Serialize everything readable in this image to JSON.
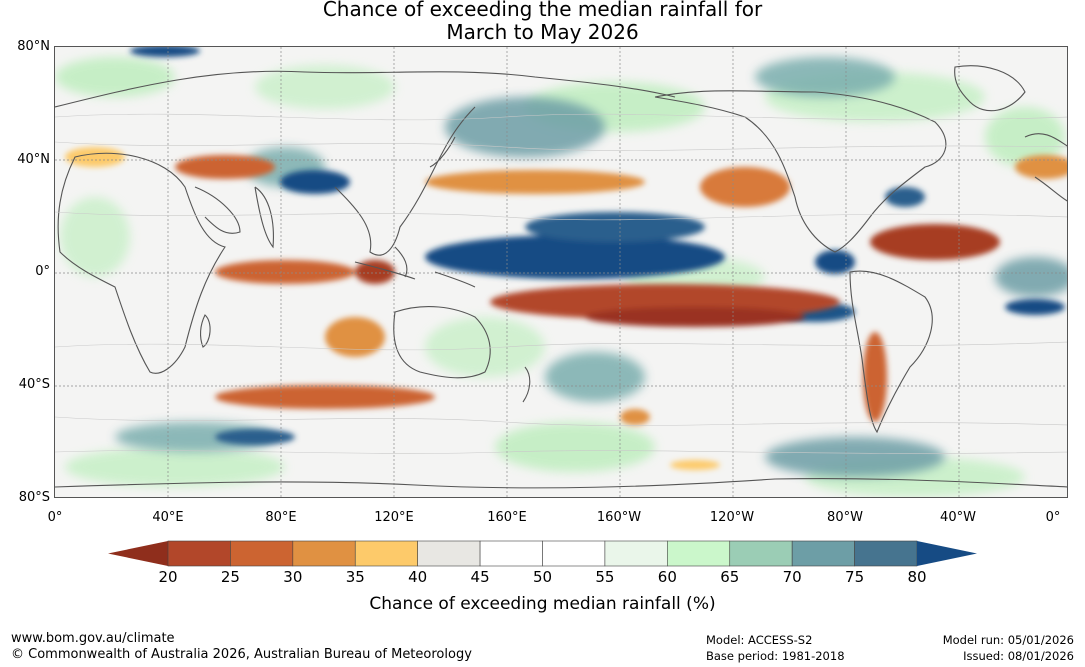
{
  "title": {
    "line1": "Chance of exceeding the median rainfall for",
    "line2": "March to May 2026"
  },
  "map": {
    "lat_labels": [
      "80°N",
      "40°N",
      "0°",
      "40°S",
      "80°S"
    ],
    "lon_labels": [
      "0°",
      "40°E",
      "80°E",
      "120°E",
      "160°E",
      "160°W",
      "120°W",
      "80°W",
      "40°W",
      "0°"
    ]
  },
  "colorbar": {
    "ticks": [
      "20",
      "25",
      "30",
      "35",
      "40",
      "45",
      "50",
      "55",
      "60",
      "65",
      "70",
      "75",
      "80"
    ],
    "colors": [
      "#8f2e1c",
      "#b2472a",
      "#cc6431",
      "#e09142",
      "#fdca6a",
      "#e8e7e3",
      "#ffffff",
      "#ffffff",
      "#eaf6ea",
      "#cbf7cb",
      "#9bcdb5",
      "#6d9ea6",
      "#46748f",
      "#164b84"
    ],
    "title": "Chance of exceeding median rainfall (%)"
  },
  "footer": {
    "url": "www.bom.gov.au/climate",
    "copyright": "© Commonwealth of Australia 2026, Australian Bureau of Meteorology",
    "model": "Model: ACCESS-S2",
    "base_period": "Base period: 1981-2018",
    "model_run": "Model run: 05/01/2026",
    "issued": "Issued: 08/01/2026"
  }
}
